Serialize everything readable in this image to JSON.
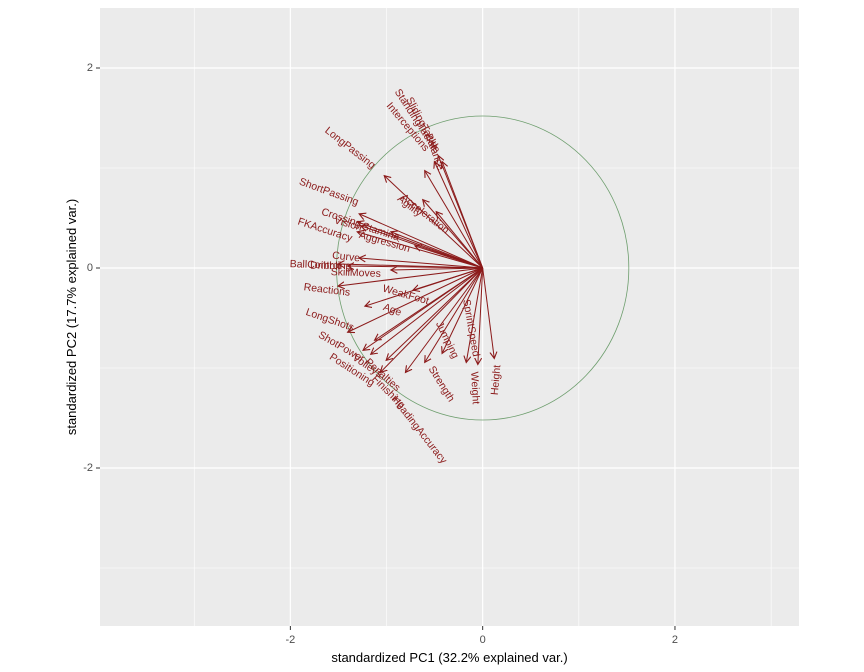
{
  "chart_data": {
    "type": "biplot",
    "xlabel": "standardized PC1 (32.2% explained var.)",
    "ylabel": "standardized PC2 (17.7% explained var.)",
    "xlim": [
      -3.98,
      3.29
    ],
    "ylim": [
      -3.58,
      2.6
    ],
    "x_ticks": [
      -2,
      0,
      2
    ],
    "y_ticks": [
      -2,
      0,
      2
    ],
    "x_minor_ticks": [
      -3,
      -1,
      1,
      3
    ],
    "y_minor_ticks": [
      -3,
      -1,
      1
    ],
    "grid": true,
    "panel_background": "#ebebeb",
    "grid_color": "#ffffff",
    "arrow_color": "#8b1a1a",
    "circle_color": "#6e9e6e",
    "circle": {
      "cx": 0,
      "cy": 0,
      "r": 1.52
    },
    "arrows": [
      {
        "name": "SlidingTackle",
        "x": -0.46,
        "y": 1.12
      },
      {
        "name": "StandingTackle",
        "x": -0.5,
        "y": 1.06
      },
      {
        "name": "Interceptions",
        "x": -0.6,
        "y": 0.97
      },
      {
        "name": "Balance",
        "x": -0.42,
        "y": 1.06
      },
      {
        "name": "LongPassing",
        "x": -1.02,
        "y": 0.92
      },
      {
        "name": "Agility",
        "x": -0.62,
        "y": 0.68
      },
      {
        "name": "Acceleration",
        "x": -0.48,
        "y": 0.56
      },
      {
        "name": "Stamina",
        "x": -0.95,
        "y": 0.36
      },
      {
        "name": "Aggression",
        "x": -0.7,
        "y": 0.22
      },
      {
        "name": "ShortPassing",
        "x": -1.28,
        "y": 0.54
      },
      {
        "name": "Crossing",
        "x": -1.3,
        "y": 0.46
      },
      {
        "name": "Vision",
        "x": -1.26,
        "y": 0.42
      },
      {
        "name": "FKAccuracy",
        "x": -1.3,
        "y": 0.36
      },
      {
        "name": "Curve",
        "x": -1.28,
        "y": 0.1
      },
      {
        "name": "BallControl",
        "x": -1.5,
        "y": 0.04
      },
      {
        "name": "Dribbling",
        "x": -1.4,
        "y": 0.02
      },
      {
        "name": "SkillMoves",
        "x": -0.95,
        "y": -0.02
      },
      {
        "name": "Reactions",
        "x": -1.5,
        "y": -0.18
      },
      {
        "name": "WeakFoot",
        "x": -0.72,
        "y": -0.22
      },
      {
        "name": "Age",
        "x": -1.22,
        "y": -0.38
      },
      {
        "name": "LongShots",
        "x": -1.4,
        "y": -0.64
      },
      {
        "name": "ShotPower",
        "x": -1.12,
        "y": -0.72
      },
      {
        "name": "Positioning",
        "x": -1.24,
        "y": -0.82
      },
      {
        "name": "Volleys",
        "x": -1.16,
        "y": -0.86
      },
      {
        "name": "Penalties",
        "x": -1.0,
        "y": -0.92
      },
      {
        "name": "Finishing",
        "x": -1.06,
        "y": -1.04
      },
      {
        "name": "Jumping",
        "x": -0.42,
        "y": -0.85
      },
      {
        "name": "Strength",
        "x": -0.6,
        "y": -0.94
      },
      {
        "name": "HeadingAccuracy",
        "x": -0.8,
        "y": -1.04
      },
      {
        "name": "SprintSpeed",
        "x": -0.17,
        "y": -0.94
      },
      {
        "name": "Weight",
        "x": -0.05,
        "y": -0.96
      },
      {
        "name": "Height",
        "x": 0.12,
        "y": -0.9
      }
    ],
    "labels": [
      {
        "name": "SlidingTackle",
        "x": -0.62,
        "y": 1.43,
        "angle": 62
      },
      {
        "name": "StandingTackle",
        "x": -0.69,
        "y": 1.48,
        "angle": 57
      },
      {
        "name": "Interceptions",
        "x": -0.78,
        "y": 1.41,
        "angle": 50
      },
      {
        "name": "Balance",
        "x": -0.5,
        "y": 1.16,
        "angle": 70
      },
      {
        "name": "LongPassing",
        "x": -1.38,
        "y": 1.2,
        "angle": 38
      },
      {
        "name": "Agility",
        "x": -0.76,
        "y": 0.62,
        "angle": 38
      },
      {
        "name": "Acceleration",
        "x": -0.6,
        "y": 0.54,
        "angle": 38
      },
      {
        "name": "Stamina",
        "x": -1.06,
        "y": 0.36,
        "angle": 18
      },
      {
        "name": "Aggression",
        "x": -1.02,
        "y": 0.26,
        "angle": 16
      },
      {
        "name": "ShortPassing",
        "x": -1.6,
        "y": 0.76,
        "angle": 20
      },
      {
        "name": "Crossing",
        "x": -1.47,
        "y": 0.5,
        "angle": 18
      },
      {
        "name": "Vision",
        "x": -1.4,
        "y": 0.44,
        "angle": 16
      },
      {
        "name": "FKAccuracy",
        "x": -1.64,
        "y": 0.38,
        "angle": 18
      },
      {
        "name": "Curve",
        "x": -1.42,
        "y": 0.11,
        "angle": 6
      },
      {
        "name": "BallControl",
        "x": -1.74,
        "y": 0.03,
        "angle": 2
      },
      {
        "name": "Dribbling",
        "x": -1.58,
        "y": 0.02,
        "angle": 1
      },
      {
        "name": "SkillMoves",
        "x": -1.32,
        "y": -0.05,
        "angle": 2
      },
      {
        "name": "Reactions",
        "x": -1.62,
        "y": -0.22,
        "angle": 7
      },
      {
        "name": "WeakFoot",
        "x": -0.8,
        "y": -0.27,
        "angle": 16
      },
      {
        "name": "Age",
        "x": -0.94,
        "y": -0.42,
        "angle": 20
      },
      {
        "name": "LongShots",
        "x": -1.59,
        "y": -0.52,
        "angle": 19
      },
      {
        "name": "ShotPower",
        "x": -1.47,
        "y": -0.79,
        "angle": 30
      },
      {
        "name": "Positioning",
        "x": -1.36,
        "y": -1.02,
        "angle": 33
      },
      {
        "name": "Volleys",
        "x": -1.2,
        "y": -0.98,
        "angle": 34
      },
      {
        "name": "Penalties",
        "x": -1.04,
        "y": -1.07,
        "angle": 42
      },
      {
        "name": "Finishing",
        "x": -0.98,
        "y": -1.24,
        "angle": 45
      },
      {
        "name": "Jumping",
        "x": -0.37,
        "y": -0.72,
        "angle": 64
      },
      {
        "name": "Strength",
        "x": -0.43,
        "y": -1.16,
        "angle": 58
      },
      {
        "name": "HeadingAccuracy",
        "x": -0.66,
        "y": -1.62,
        "angle": 52
      },
      {
        "name": "SprintSpeed",
        "x": -0.12,
        "y": -0.6,
        "angle": 80
      },
      {
        "name": "Weight",
        "x": -0.08,
        "y": -1.2,
        "angle": 87
      },
      {
        "name": "Height",
        "x": 0.14,
        "y": -1.12,
        "angle": -85
      }
    ]
  }
}
